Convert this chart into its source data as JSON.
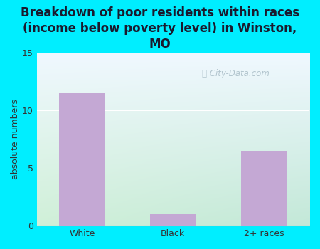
{
  "categories": [
    "White",
    "Black",
    "2+ races"
  ],
  "values": [
    11.5,
    1.0,
    6.5
  ],
  "bar_color": "#c4a8d4",
  "title": "Breakdown of poor residents within races\n(income below poverty level) in Winston,\nMO",
  "ylabel": "absolute numbers",
  "ylim": [
    0,
    15
  ],
  "yticks": [
    0,
    5,
    10,
    15
  ],
  "title_fontsize": 12,
  "label_fontsize": 9,
  "tick_fontsize": 9,
  "bg_color": "#00eeff",
  "watermark": "City-Data.com",
  "hline_y": 10,
  "hline_color": "#ffffff"
}
